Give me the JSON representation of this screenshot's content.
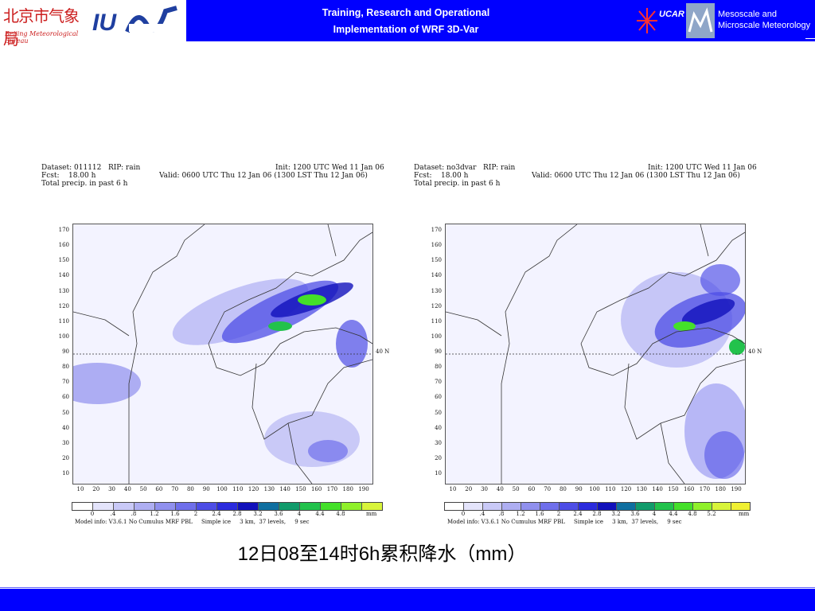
{
  "header": {
    "title_line1": "Training, Research and Operational",
    "title_line2": "Implementation of WRF 3D-Var",
    "logo_bj_cn": "北京市气象局",
    "logo_bj_en": "Beijing Meteorological Bureau",
    "ucar_label": "UCAR",
    "mmm_line1": "Mesoscale and",
    "mmm_line2": "Microscale Meteorology"
  },
  "colors": {
    "header_blue": "#0000ff",
    "footer_blue": "#0000ff",
    "plot_background": "#f3f3ff"
  },
  "panels": [
    {
      "dataset_line": "Dataset: 011112   RIP: rain",
      "init_line": "Init: 1200 UTC Wed 11 Jan 06",
      "fcst_line": "Fcst:    18.00 h",
      "valid_line": "Valid: 0600 UTC Thu 12 Jan 06 (1300 LST Thu 12 Jan 06)",
      "field_line": "Total precip. in past 6 h",
      "lat_label": "40 N",
      "y_ticks": [
        "170",
        "160",
        "150",
        "140",
        "130",
        "120",
        "110",
        "100",
        "90",
        "80",
        "70",
        "60",
        "50",
        "40",
        "30",
        "20",
        "10"
      ],
      "x_ticks": [
        "10",
        "20",
        "30",
        "40",
        "50",
        "60",
        "70",
        "80",
        "90",
        "100",
        "110",
        "120",
        "130",
        "140",
        "150",
        "160",
        "170",
        "180",
        "190"
      ],
      "colorbar_labels": [
        "0",
        ".4",
        ".8",
        "1.2",
        "1.6",
        "2",
        "2.4",
        "2.8",
        "3.2",
        "3.6",
        "4",
        "4.4",
        "4.8"
      ],
      "colorbar_colors": [
        "#ffffff",
        "#e4e4fb",
        "#c9c9f7",
        "#aeaef2",
        "#9090ee",
        "#6f6feb",
        "#4d4de6",
        "#2b2bdd",
        "#1111bb",
        "#0f6fa0",
        "#119b6b",
        "#22c24c",
        "#44e02a",
        "#8ff02a",
        "#d8f43a"
      ],
      "unit": "mm",
      "model_info": "Model info: V3.6.1 No Cumulus MRF PBL     Simple ice     3 km,  37 levels,     9 sec"
    },
    {
      "dataset_line": "Dataset: no3dvar   RIP: rain",
      "init_line": "Init: 1200 UTC Wed 11 Jan 06",
      "fcst_line": "Fcst:    18.00 h",
      "valid_line": "Valid: 0600 UTC Thu 12 Jan 06 (1300 LST Thu 12 Jan 06)",
      "field_line": "Total precip. in past 6 h",
      "lat_label": "40 N",
      "y_ticks": [
        "170",
        "160",
        "150",
        "140",
        "130",
        "120",
        "110",
        "100",
        "90",
        "80",
        "70",
        "60",
        "50",
        "40",
        "30",
        "20",
        "10"
      ],
      "x_ticks": [
        "10",
        "20",
        "30",
        "40",
        "50",
        "60",
        "70",
        "80",
        "90",
        "100",
        "110",
        "120",
        "130",
        "140",
        "150",
        "160",
        "170",
        "180",
        "190"
      ],
      "colorbar_labels": [
        "0",
        ".4",
        ".8",
        "1.2",
        "1.6",
        "2",
        "2.4",
        "2.8",
        "3.2",
        "3.6",
        "4",
        "4.4",
        "4.8",
        "5.2"
      ],
      "colorbar_colors": [
        "#ffffff",
        "#e4e4fb",
        "#c9c9f7",
        "#aeaef2",
        "#9090ee",
        "#6f6feb",
        "#4d4de6",
        "#2b2bdd",
        "#1111bb",
        "#0f6fa0",
        "#119b6b",
        "#22c24c",
        "#44e02a",
        "#8ff02a",
        "#d8f43a",
        "#f0f032"
      ],
      "unit": "mm",
      "model_info": "Model info: V3.6.1 No Cumulus MRF PBL     Simple ice     3 km,  37 levels,     9 sec"
    }
  ],
  "caption": "12日08至14时6h累积降水（mm）"
}
